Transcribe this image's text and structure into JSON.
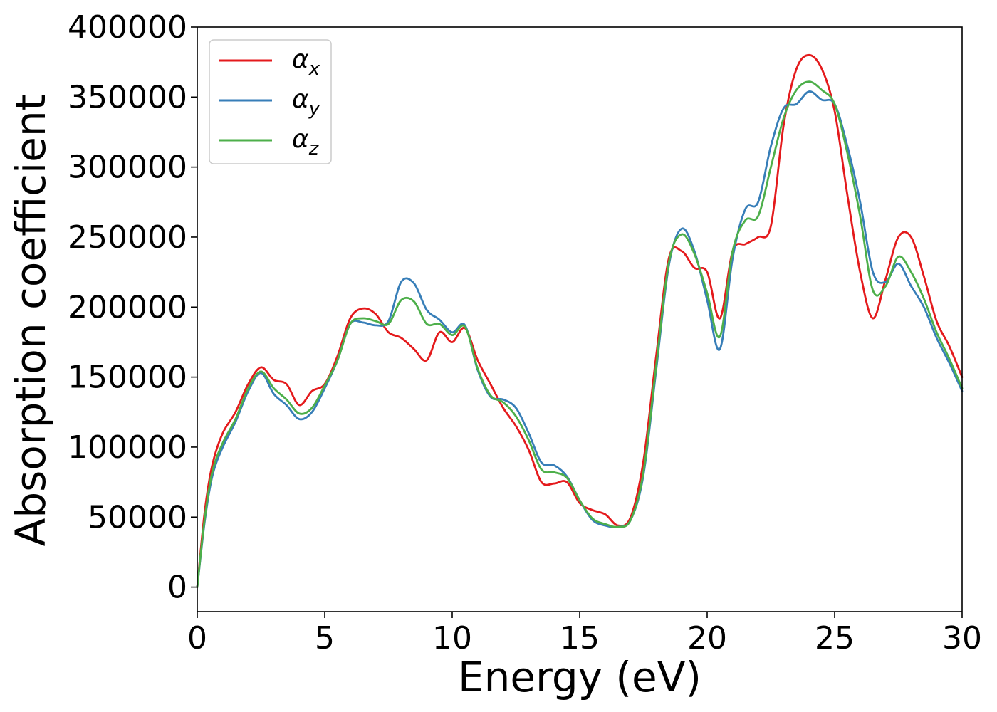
{
  "chart_data": {
    "type": "line",
    "title": "",
    "xlabel": "Energy (eV)",
    "ylabel": "Absorption coefficient",
    "xlim": [
      0,
      30
    ],
    "ylim": [
      -17500,
      400000
    ],
    "xticks": [
      0,
      5,
      10,
      15,
      20,
      25,
      30
    ],
    "xtick_labels": [
      "0",
      "5",
      "10",
      "15",
      "20",
      "25",
      "30"
    ],
    "yticks": [
      0,
      50000,
      100000,
      150000,
      200000,
      250000,
      300000,
      350000,
      400000
    ],
    "ytick_labels": [
      "0",
      "50000",
      "100000",
      "150000",
      "200000",
      "250000",
      "300000",
      "350000",
      "400000"
    ],
    "grid": false,
    "legend_position": "top-left",
    "series": [
      {
        "name": "α",
        "subscript": "x",
        "color": "#e41a1c",
        "x": [
          0,
          0.3,
          0.6,
          1.0,
          1.5,
          2.0,
          2.5,
          3.0,
          3.5,
          4.0,
          4.5,
          5.0,
          5.5,
          6.0,
          6.5,
          7.0,
          7.5,
          8.0,
          8.5,
          9.0,
          9.5,
          10.0,
          10.5,
          11.0,
          11.5,
          12.0,
          12.5,
          13.0,
          13.5,
          14.0,
          14.5,
          15.0,
          15.5,
          16.0,
          16.5,
          17.0,
          17.5,
          18.0,
          18.5,
          19.0,
          19.5,
          20.0,
          20.5,
          21.0,
          21.5,
          22.0,
          22.5,
          23.0,
          23.5,
          24.0,
          24.5,
          25.0,
          25.5,
          26.0,
          26.5,
          27.0,
          27.5,
          28.0,
          28.5,
          29.0,
          29.5,
          30.0
        ],
        "y": [
          0,
          55000,
          88000,
          110000,
          125000,
          145000,
          157000,
          148000,
          145000,
          130000,
          140000,
          145000,
          165000,
          192000,
          199000,
          195000,
          182000,
          178000,
          170000,
          162000,
          182000,
          175000,
          185000,
          162000,
          145000,
          128000,
          115000,
          98000,
          75000,
          74000,
          75000,
          60000,
          55000,
          52000,
          44000,
          50000,
          90000,
          165000,
          235000,
          240000,
          228000,
          225000,
          192000,
          240000,
          245000,
          250000,
          258000,
          330000,
          370000,
          380000,
          370000,
          340000,
          280000,
          225000,
          192000,
          220000,
          250000,
          250000,
          222000,
          190000,
          172000,
          150000
        ]
      },
      {
        "name": "α",
        "subscript": "y",
        "color": "#377eb8",
        "x": [
          0,
          0.3,
          0.6,
          1.0,
          1.5,
          2.0,
          2.5,
          3.0,
          3.5,
          4.0,
          4.5,
          5.0,
          5.5,
          6.0,
          6.5,
          7.0,
          7.5,
          8.0,
          8.5,
          9.0,
          9.5,
          10.0,
          10.5,
          11.0,
          11.5,
          12.0,
          12.5,
          13.0,
          13.5,
          14.0,
          14.5,
          15.0,
          15.5,
          16.0,
          16.5,
          17.0,
          17.5,
          18.0,
          18.5,
          19.0,
          19.5,
          20.0,
          20.5,
          21.0,
          21.5,
          22.0,
          22.5,
          23.0,
          23.5,
          24.0,
          24.5,
          25.0,
          25.5,
          26.0,
          26.5,
          27.0,
          27.5,
          28.0,
          28.5,
          29.0,
          29.5,
          30.0
        ],
        "y": [
          0,
          48000,
          80000,
          100000,
          118000,
          140000,
          153000,
          138000,
          130000,
          120000,
          125000,
          142000,
          162000,
          188000,
          189000,
          187000,
          190000,
          218000,
          217000,
          198000,
          191000,
          182000,
          187000,
          155000,
          136000,
          134000,
          128000,
          110000,
          89000,
          87000,
          79000,
          62000,
          48000,
          44000,
          43000,
          48000,
          80000,
          155000,
          230000,
          256000,
          240000,
          205000,
          170000,
          235000,
          270000,
          275000,
          315000,
          342000,
          345000,
          354000,
          348000,
          345000,
          315000,
          275000,
          225000,
          218000,
          231000,
          215000,
          200000,
          178000,
          160000,
          140000
        ]
      },
      {
        "name": "α",
        "subscript": "z",
        "color": "#4daf4a",
        "x": [
          0,
          0.3,
          0.6,
          1.0,
          1.5,
          2.0,
          2.5,
          3.0,
          3.5,
          4.0,
          4.5,
          5.0,
          5.5,
          6.0,
          6.5,
          7.0,
          7.5,
          8.0,
          8.5,
          9.0,
          9.5,
          10.0,
          10.5,
          11.0,
          11.5,
          12.0,
          12.5,
          13.0,
          13.5,
          14.0,
          14.5,
          15.0,
          15.5,
          16.0,
          16.5,
          17.0,
          17.5,
          18.0,
          18.5,
          19.0,
          19.5,
          20.0,
          20.5,
          21.0,
          21.5,
          22.0,
          22.5,
          23.0,
          23.5,
          24.0,
          24.5,
          25.0,
          25.5,
          26.0,
          26.5,
          27.0,
          27.5,
          28.0,
          28.5,
          29.0,
          29.5,
          30.0
        ],
        "y": [
          0,
          50000,
          83000,
          103000,
          120000,
          142000,
          154000,
          142000,
          134000,
          124000,
          128000,
          144000,
          162000,
          188000,
          192000,
          190000,
          188000,
          205000,
          204000,
          188000,
          188000,
          180000,
          186000,
          156000,
          137000,
          132000,
          122000,
          105000,
          84000,
          82000,
          78000,
          62000,
          49000,
          45000,
          43000,
          48000,
          82000,
          158000,
          232000,
          252000,
          238000,
          210000,
          179000,
          240000,
          262000,
          265000,
          300000,
          335000,
          355000,
          361000,
          355000,
          345000,
          310000,
          265000,
          212000,
          215000,
          236000,
          225000,
          206000,
          182000,
          163000,
          142000
        ]
      }
    ]
  }
}
